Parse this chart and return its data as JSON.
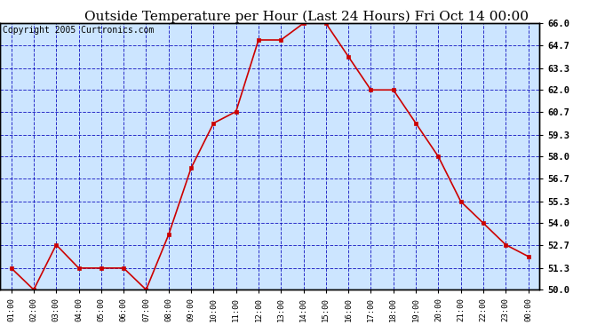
{
  "title": "Outside Temperature per Hour (Last 24 Hours) Fri Oct 14 00:00",
  "copyright": "Copyright 2005 Curtronics.com",
  "hours": [
    "01:00",
    "02:00",
    "03:00",
    "04:00",
    "05:00",
    "06:00",
    "07:00",
    "08:00",
    "09:00",
    "10:00",
    "11:00",
    "12:00",
    "13:00",
    "14:00",
    "15:00",
    "16:00",
    "17:00",
    "18:00",
    "19:00",
    "20:00",
    "21:00",
    "22:00",
    "23:00",
    "00:00"
  ],
  "temps": [
    51.3,
    50.0,
    52.7,
    51.3,
    51.3,
    51.3,
    50.0,
    53.3,
    57.3,
    60.0,
    60.7,
    65.0,
    65.0,
    66.0,
    66.0,
    64.0,
    62.0,
    62.0,
    60.0,
    58.0,
    55.3,
    54.0,
    52.7,
    52.0
  ],
  "line_color": "#cc0000",
  "marker_color": "#cc0000",
  "bg_color": "#cce5ff",
  "grid_color": "#0000bb",
  "border_color": "#000000",
  "title_fontsize": 11,
  "copyright_fontsize": 7,
  "ylim": [
    50.0,
    66.0
  ],
  "yticks": [
    50.0,
    51.3,
    52.7,
    54.0,
    55.3,
    56.7,
    58.0,
    59.3,
    60.7,
    62.0,
    63.3,
    64.7,
    66.0
  ]
}
